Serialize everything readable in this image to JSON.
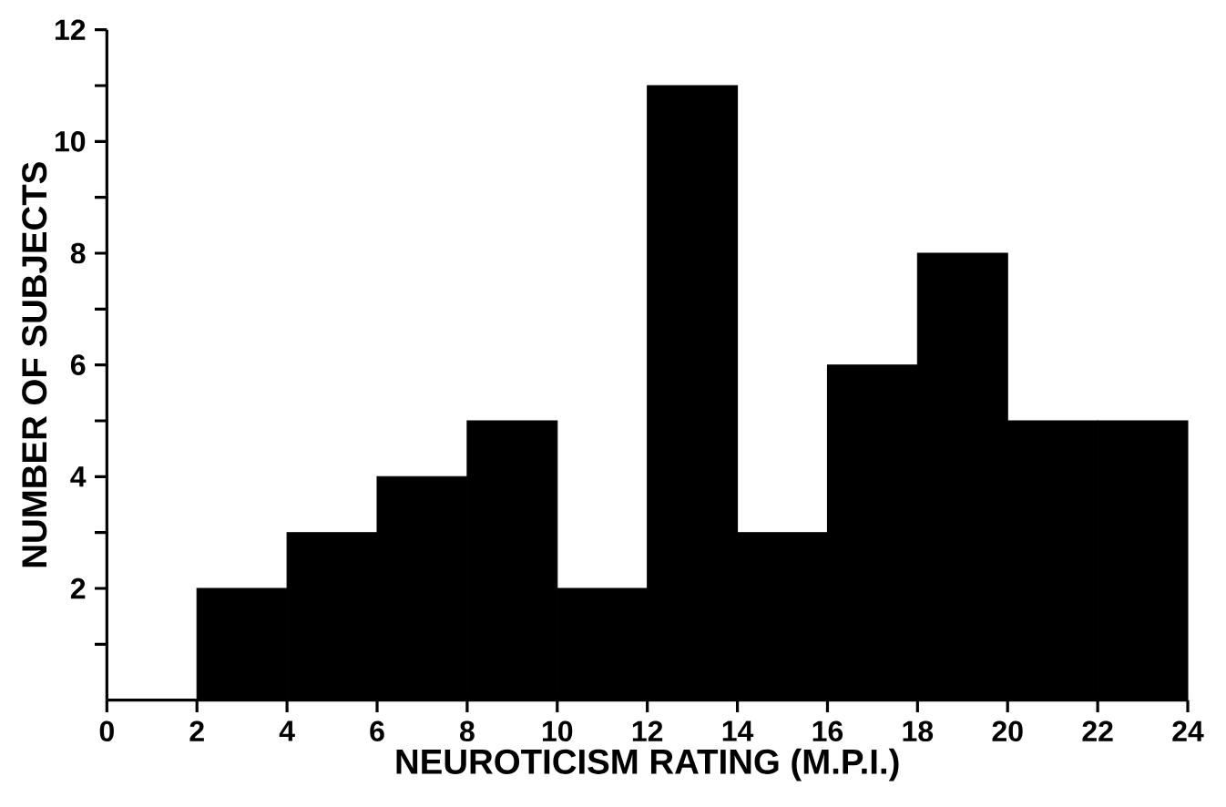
{
  "chart_data": {
    "type": "histogram",
    "xlabel": "NEUROTICISM   RATING   (M.P.I.)",
    "ylabel": "NUMBER  OF  SUBJECTS",
    "bins": [
      2,
      4,
      6,
      8,
      10,
      12,
      14,
      16,
      18,
      20,
      22,
      24
    ],
    "values": [
      2,
      3,
      4,
      5,
      2,
      11,
      3,
      6,
      8,
      5,
      5
    ],
    "color": "#000000",
    "xlim": [
      0,
      24
    ],
    "xticks": [
      0,
      2,
      4,
      6,
      8,
      10,
      12,
      14,
      16,
      18,
      20,
      22,
      24
    ],
    "ylim": [
      0,
      12
    ],
    "yticks": [
      {
        "value": 1,
        "label": null
      },
      2,
      {
        "value": 3,
        "label": null
      },
      4,
      {
        "value": 5,
        "label": null
      },
      6,
      {
        "value": 7,
        "label": null
      },
      8,
      {
        "value": 9,
        "label": null
      },
      10,
      {
        "value": 11,
        "label": null
      },
      12
    ],
    "grid": false
  }
}
